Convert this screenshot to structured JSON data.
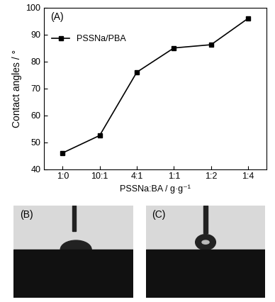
{
  "chart_data": {
    "type": "line",
    "x_label": "PSSNa:BA / g·g⁻¹",
    "y_label": "Contact angles / °",
    "annotations": [
      "(A)"
    ],
    "categories": [
      "1:0",
      "10:1",
      "4:1",
      "1:1",
      "1:2",
      "1:4"
    ],
    "series": [
      {
        "name": "PSSNa/PBA",
        "color": "#000000",
        "marker": "square",
        "line_style": "solid",
        "values": [
          46,
          52.5,
          76,
          85,
          86.2,
          96
        ]
      }
    ],
    "ylim": [
      40,
      100
    ],
    "yticks": [
      40,
      50,
      60,
      70,
      80,
      90,
      100
    ],
    "legend": "upper left",
    "grid": false
  },
  "images": [
    {
      "label": "(B)"
    },
    {
      "label": "(C)"
    }
  ]
}
